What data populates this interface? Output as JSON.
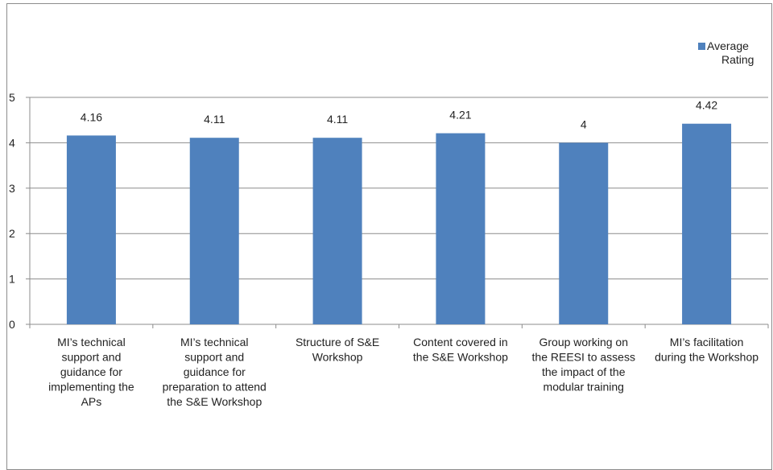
{
  "chart_data": {
    "type": "bar",
    "categories": [
      "MI’s technical support and guidance for implementing the APs",
      "MI’s technical support and guidance for preparation to attend the S&E Workshop",
      "Structure of S&E Workshop",
      "Content covered in the S&E Workshop",
      "Group working on the REESI to assess the impact of the modular training",
      "MI’s facilitation during the Workshop"
    ],
    "category_lines": [
      [
        "MI’s technical",
        "support and",
        "guidance for",
        "implementing the",
        "APs"
      ],
      [
        "MI’s technical",
        "support and",
        "guidance for",
        "preparation to attend",
        "the S&E Workshop"
      ],
      [
        "Structure of S&E",
        "Workshop"
      ],
      [
        "Content covered in",
        "the S&E Workshop"
      ],
      [
        "Group working on",
        "the REESI to assess",
        "the impact of the",
        "modular training"
      ],
      [
        "MI’s facilitation",
        "during the Workshop"
      ]
    ],
    "series": [
      {
        "name": "Average Rating",
        "values": [
          4.16,
          4.11,
          4.11,
          4.21,
          4,
          4.42
        ],
        "color": "#4f81bd"
      }
    ],
    "data_labels": [
      "4.16",
      "4.11",
      "4.11",
      "4.21",
      "4",
      "4.42"
    ],
    "y_ticks": [
      "0",
      "1",
      "2",
      "3",
      "4",
      "5"
    ],
    "ylim": [
      0,
      5
    ],
    "grid": true,
    "legend": {
      "labels": [
        "Average",
        "Rating"
      ],
      "position": "top-right"
    },
    "title": "",
    "xlabel": "",
    "ylabel": ""
  }
}
